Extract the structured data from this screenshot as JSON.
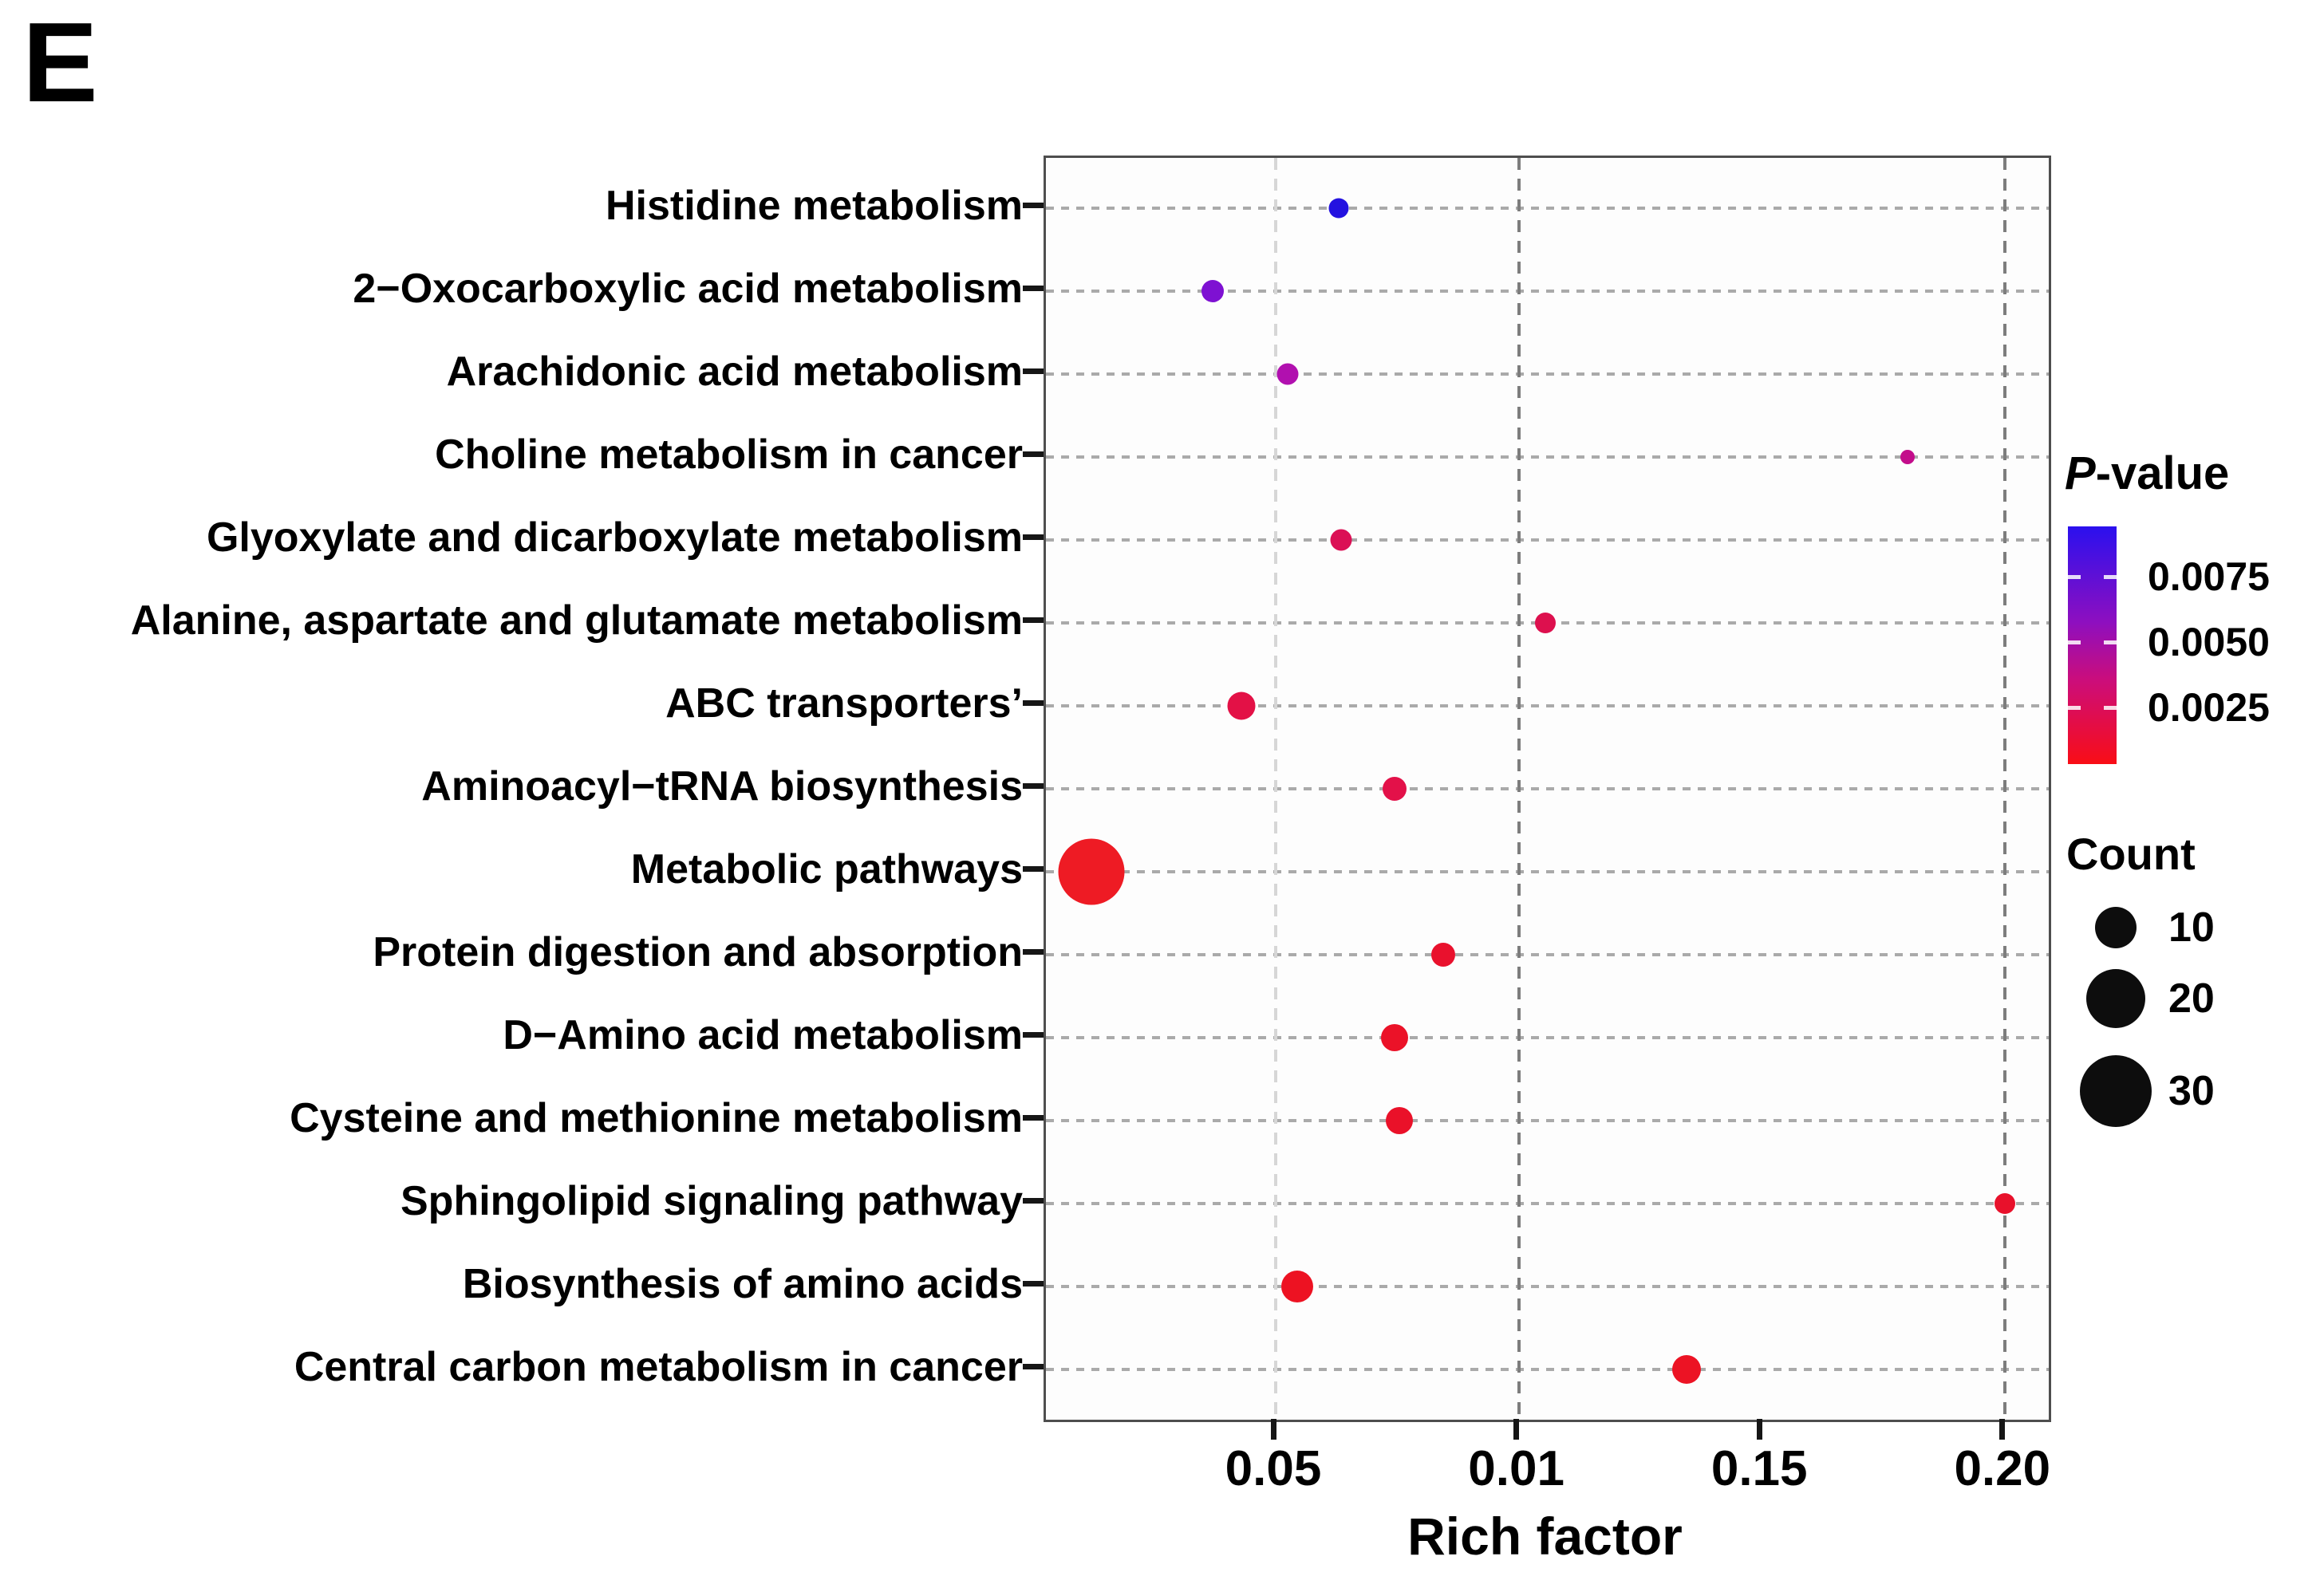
{
  "panel_label": "E",
  "chart_data": {
    "type": "scatter",
    "title": "",
    "xlabel": "Rich factor",
    "ylabel": "",
    "x_tick_labels": [
      "0.05",
      "0.01",
      "0.15",
      "0.20"
    ],
    "x_axis_note": "ticks evenly spaced; '0.01' appears as printed in figure at the 0.10 position",
    "grid": "dashed",
    "points": [
      {
        "pathway": "Histidine metabolism",
        "rich_factor": 0.063,
        "p_value_est": 0.009,
        "count_est": 2,
        "radius_px": 12.5,
        "color": "#2412e0"
      },
      {
        "pathway": "2−Oxocarboxylic acid metabolism",
        "rich_factor": 0.037,
        "p_value_est": 0.0063,
        "count_est": 3,
        "radius_px": 14,
        "color": "#7e11d2"
      },
      {
        "pathway": "Arachidonic acid metabolism",
        "rich_factor": 0.0525,
        "p_value_est": 0.0045,
        "count_est": 3,
        "radius_px": 13.5,
        "color": "#b110af"
      },
      {
        "pathway": "Choline metabolism in cancer",
        "rich_factor": 0.18,
        "p_value_est": 0.0035,
        "count_est": 1,
        "radius_px": 9,
        "color": "#c30d8b"
      },
      {
        "pathway": "Glyoxylate and dicarboxylate metabolism",
        "rich_factor": 0.0635,
        "p_value_est": 0.0018,
        "count_est": 3,
        "radius_px": 13.5,
        "color": "#db1055"
      },
      {
        "pathway": "Alanine, aspartate and glutamate metabolism",
        "rich_factor": 0.1055,
        "p_value_est": 0.0016,
        "count_est": 3,
        "radius_px": 13,
        "color": "#dd104e"
      },
      {
        "pathway": "ABC transporters’",
        "rich_factor": 0.043,
        "p_value_est": 0.0013,
        "count_est": 5,
        "radius_px": 17.5,
        "color": "#e31146"
      },
      {
        "pathway": "Aminoacyl−tRNA biosynthesis",
        "rich_factor": 0.0745,
        "p_value_est": 0.0013,
        "count_est": 3,
        "radius_px": 15,
        "color": "#e31149"
      },
      {
        "pathway": "Metabolic pathways",
        "rich_factor": 0.012,
        "p_value_est": 0.0003,
        "count_est": 26,
        "radius_px": 41.5,
        "color": "#ee1b24"
      },
      {
        "pathway": "Protein digestion and absorption",
        "rich_factor": 0.0845,
        "p_value_est": 0.0009,
        "count_est": 3,
        "radius_px": 15,
        "color": "#e9112d"
      },
      {
        "pathway": "D−Amino acid metabolism",
        "rich_factor": 0.0745,
        "p_value_est": 0.0008,
        "count_est": 4,
        "radius_px": 17,
        "color": "#eb1228"
      },
      {
        "pathway": "Cysteine and methionine metabolism",
        "rich_factor": 0.0755,
        "p_value_est": 0.0008,
        "count_est": 4,
        "radius_px": 17,
        "color": "#ea1129"
      },
      {
        "pathway": "Sphingolipid signaling pathway",
        "rich_factor": 0.2,
        "p_value_est": 0.0009,
        "count_est": 3,
        "radius_px": 13,
        "color": "#e8112b"
      },
      {
        "pathway": "Biosynthesis of amino acids",
        "rich_factor": 0.0545,
        "p_value_est": 0.0005,
        "count_est": 6,
        "radius_px": 20,
        "color": "#ed1222"
      },
      {
        "pathway": "Central carbon metabolism in cancer",
        "rich_factor": 0.1345,
        "p_value_est": 0.0006,
        "count_est": 5,
        "radius_px": 18,
        "color": "#ec1324"
      }
    ]
  },
  "legend": {
    "p_value": {
      "title_italic": "P",
      "title_rest": "-value",
      "ticks": [
        "0.0075",
        "0.0050",
        "0.0025"
      ],
      "colorbar_colors": [
        "#2b10ee",
        "#8d0fc0",
        "#cc0d7a",
        "#f90d16"
      ]
    },
    "count": {
      "title": "Count",
      "entries": [
        "10",
        "20",
        "30"
      ]
    }
  }
}
